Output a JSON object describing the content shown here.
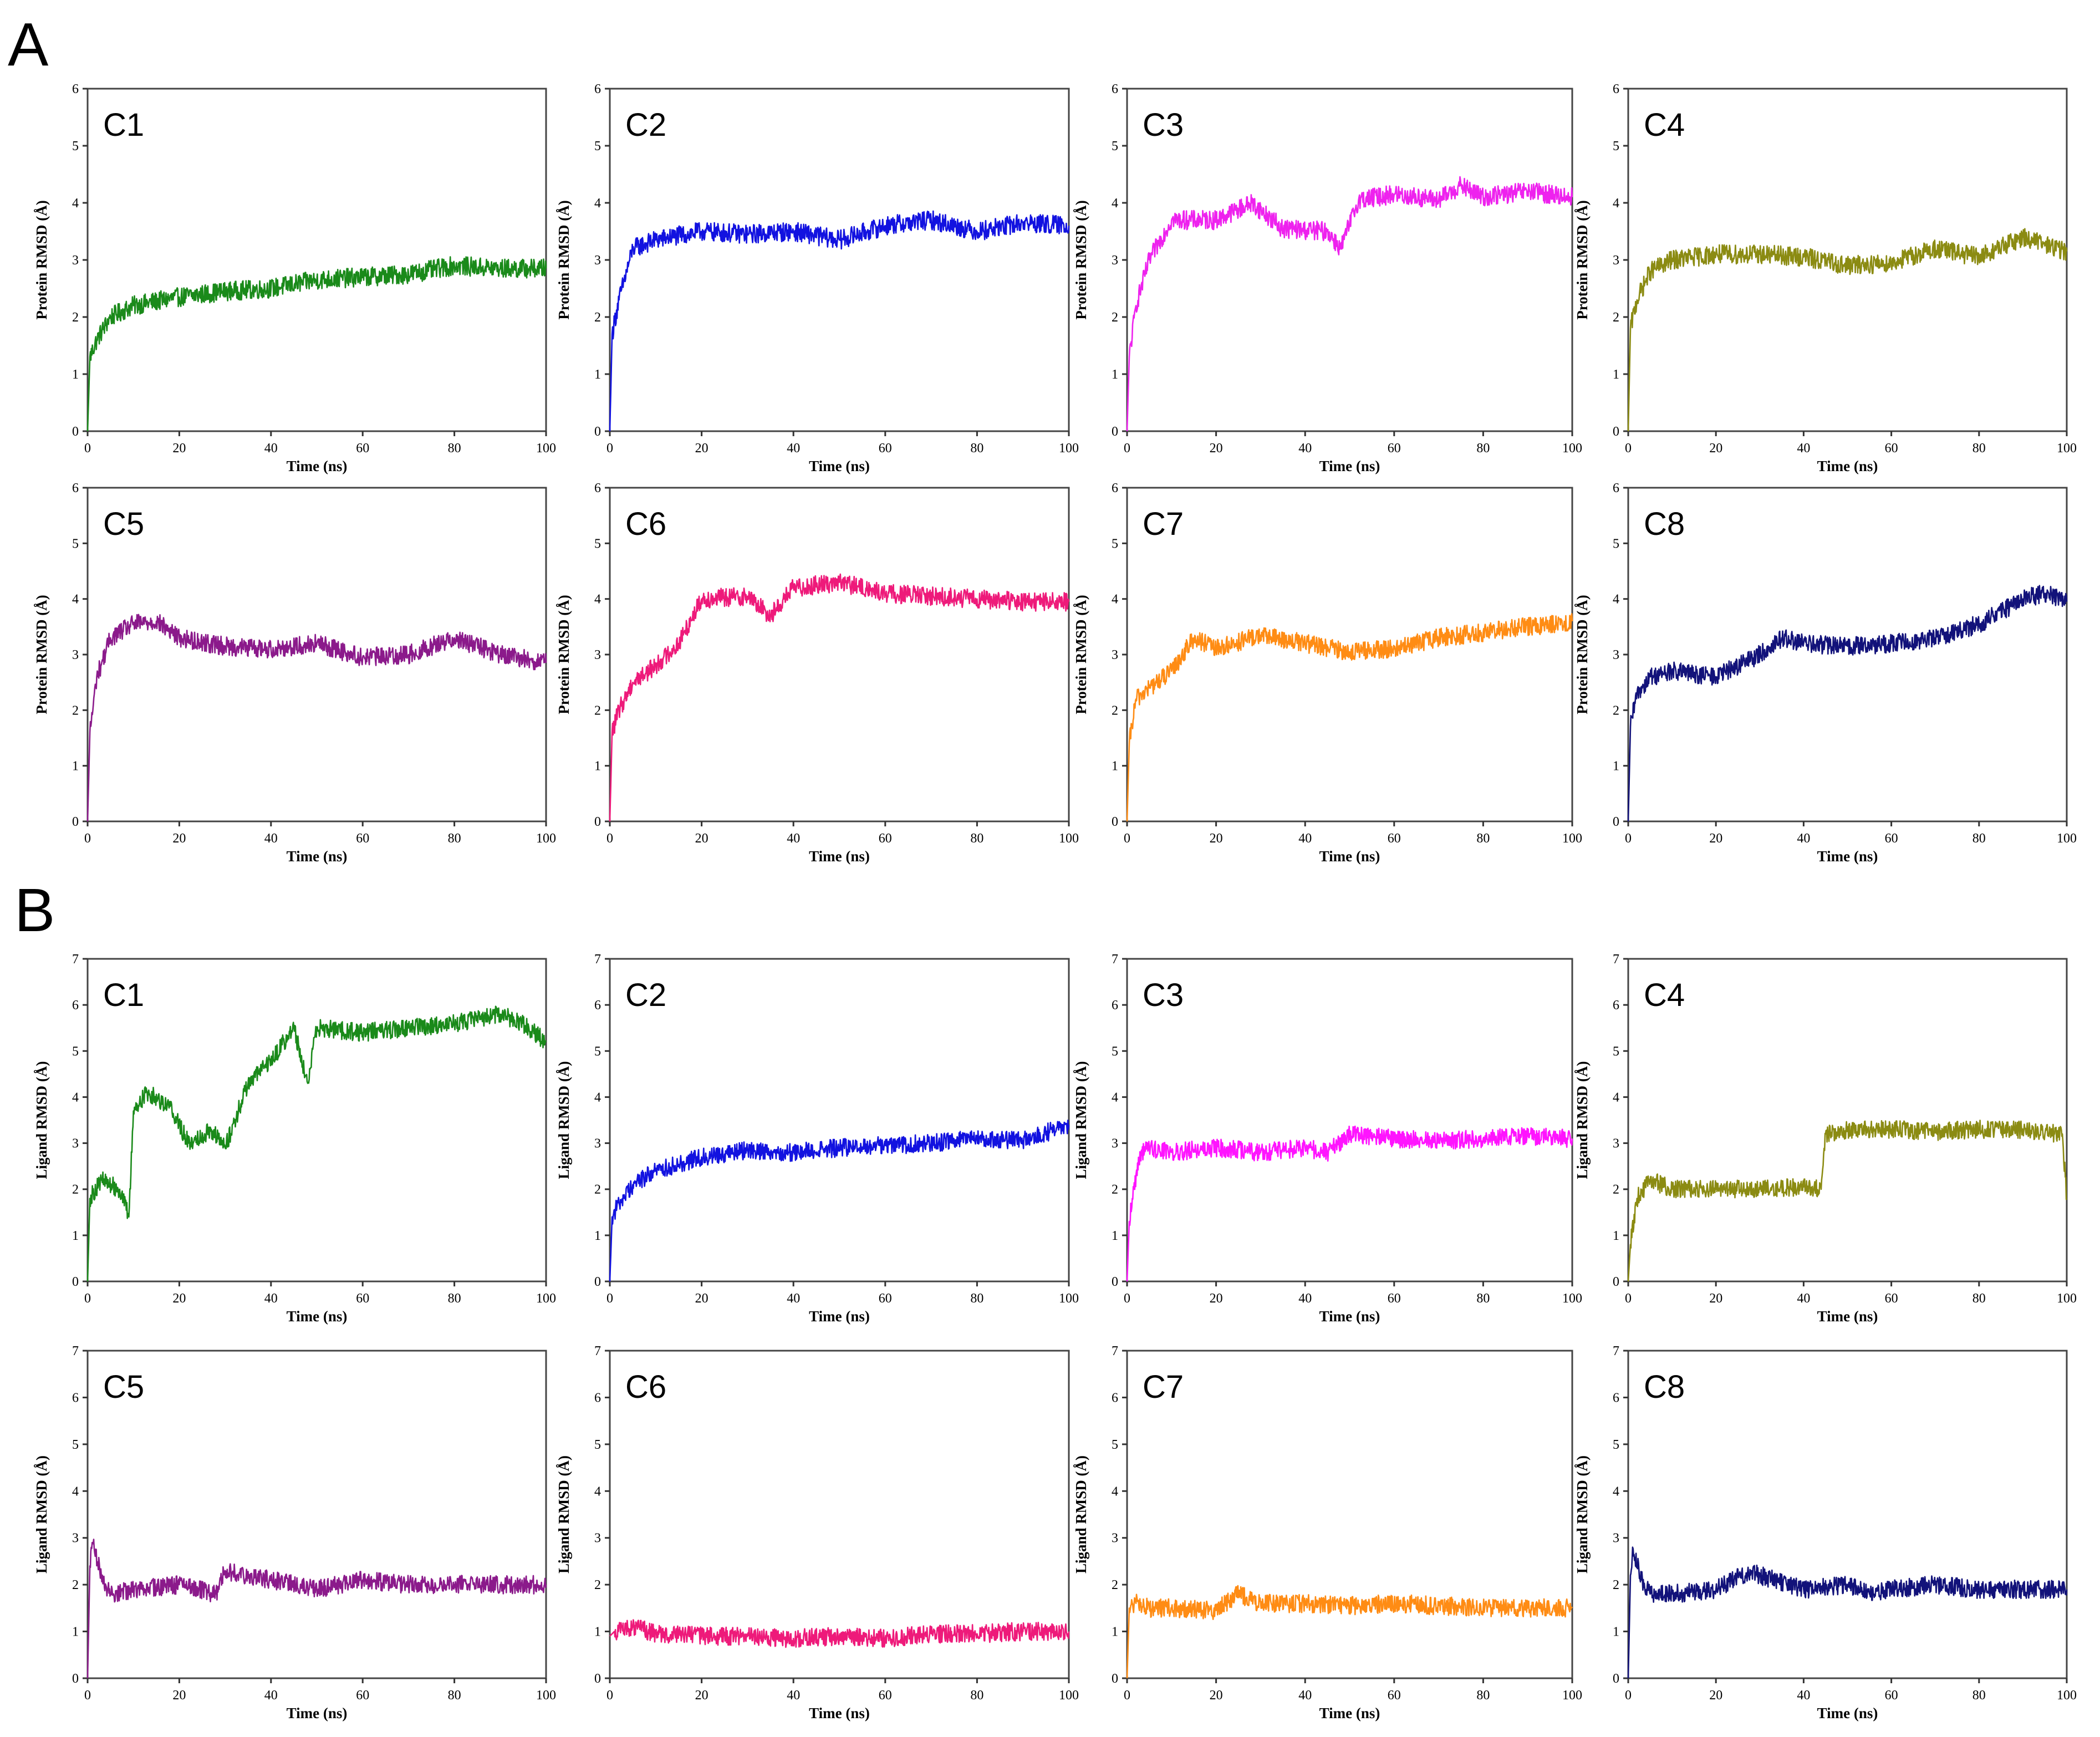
{
  "panels": [
    {
      "letter": "A",
      "ylabel": "Protein RMSD (Å)",
      "xlabel": "Time (ns)"
    },
    {
      "letter": "B",
      "ylabel": "Ligand RMSD (Å)",
      "xlabel": "Time (ns)"
    }
  ],
  "chart_data": [
    {
      "panel": "A",
      "title": "C1",
      "type": "line",
      "xlabel": "Time (ns)",
      "ylabel": "Protein RMSD (Å)",
      "xlim": [
        0,
        100
      ],
      "ylim": [
        0,
        6
      ],
      "xticks": [
        0,
        20,
        40,
        60,
        80,
        100
      ],
      "yticks": [
        0,
        1,
        2,
        3,
        4,
        5,
        6
      ],
      "color": "#1a8a1a",
      "grid": false,
      "series": [
        {
          "x": [
            0,
            0.5,
            2,
            5,
            10,
            20,
            30,
            40,
            50,
            60,
            70,
            80,
            90,
            100
          ],
          "y": [
            0,
            1.3,
            1.6,
            2.0,
            2.2,
            2.35,
            2.45,
            2.5,
            2.65,
            2.7,
            2.75,
            2.9,
            2.85,
            2.85
          ]
        }
      ]
    },
    {
      "panel": "A",
      "title": "C2",
      "type": "line",
      "xlabel": "Time (ns)",
      "ylabel": "Protein RMSD (Å)",
      "xlim": [
        0,
        100
      ],
      "ylim": [
        0,
        6
      ],
      "xticks": [
        0,
        20,
        40,
        60,
        80,
        100
      ],
      "yticks": [
        0,
        1,
        2,
        3,
        4,
        5,
        6
      ],
      "color": "#1212e0",
      "grid": false,
      "series": [
        {
          "x": [
            0,
            0.5,
            2,
            5,
            10,
            20,
            30,
            40,
            50,
            60,
            70,
            80,
            90,
            100
          ],
          "y": [
            0,
            1.7,
            2.3,
            3.2,
            3.35,
            3.5,
            3.45,
            3.5,
            3.35,
            3.6,
            3.7,
            3.5,
            3.65,
            3.6
          ]
        }
      ]
    },
    {
      "panel": "A",
      "title": "C3",
      "type": "line",
      "xlabel": "Time (ns)",
      "ylabel": "Protein RMSD (Å)",
      "xlim": [
        0,
        100
      ],
      "ylim": [
        0,
        6
      ],
      "xticks": [
        0,
        20,
        40,
        60,
        80,
        100
      ],
      "yticks": [
        0,
        1,
        2,
        3,
        4,
        5,
        6
      ],
      "color": "#ee22ee",
      "grid": false,
      "series": [
        {
          "x": [
            0,
            0.5,
            2,
            5,
            10,
            20,
            28,
            35,
            45,
            48,
            52,
            60,
            70,
            75,
            80,
            90,
            100
          ],
          "y": [
            0,
            1.3,
            2.2,
            3.0,
            3.7,
            3.7,
            4.0,
            3.55,
            3.5,
            3.2,
            4.05,
            4.15,
            4.05,
            4.3,
            4.1,
            4.2,
            4.1
          ]
        }
      ]
    },
    {
      "panel": "A",
      "title": "C4",
      "type": "line",
      "xlabel": "Time (ns)",
      "ylabel": "Protein RMSD (Å)",
      "xlim": [
        0,
        100
      ],
      "ylim": [
        0,
        6
      ],
      "xticks": [
        0,
        20,
        40,
        60,
        80,
        100
      ],
      "yticks": [
        0,
        1,
        2,
        3,
        4,
        5,
        6
      ],
      "color": "#8b8b12",
      "grid": false,
      "series": [
        {
          "x": [
            0,
            0.5,
            2,
            5,
            10,
            20,
            30,
            40,
            50,
            60,
            70,
            80,
            90,
            100
          ],
          "y": [
            0,
            1.8,
            2.3,
            2.8,
            3.0,
            3.1,
            3.1,
            3.05,
            2.9,
            2.95,
            3.2,
            3.05,
            3.4,
            3.15
          ]
        }
      ]
    },
    {
      "panel": "A",
      "title": "C5",
      "type": "line",
      "xlabel": "Time (ns)",
      "ylabel": "Protein RMSD (Å)",
      "xlim": [
        0,
        100
      ],
      "ylim": [
        0,
        6
      ],
      "xticks": [
        0,
        20,
        40,
        60,
        80,
        100
      ],
      "yticks": [
        0,
        1,
        2,
        3,
        4,
        5,
        6
      ],
      "color": "#8b1a8b",
      "grid": false,
      "series": [
        {
          "x": [
            0,
            0.5,
            2,
            5,
            10,
            15,
            20,
            30,
            40,
            50,
            60,
            70,
            80,
            90,
            100
          ],
          "y": [
            0,
            1.6,
            2.6,
            3.3,
            3.55,
            3.6,
            3.3,
            3.15,
            3.1,
            3.2,
            2.95,
            3.0,
            3.3,
            3.0,
            2.85
          ]
        }
      ]
    },
    {
      "panel": "A",
      "title": "C6",
      "type": "line",
      "xlabel": "Time (ns)",
      "ylabel": "Protein RMSD (Å)",
      "xlim": [
        0,
        100
      ],
      "ylim": [
        0,
        6
      ],
      "xticks": [
        0,
        20,
        40,
        60,
        80,
        100
      ],
      "yticks": [
        0,
        1,
        2,
        3,
        4,
        5,
        6
      ],
      "color": "#ee1a7a",
      "grid": false,
      "series": [
        {
          "x": [
            0,
            0.5,
            2,
            5,
            10,
            15,
            20,
            30,
            35,
            40,
            50,
            60,
            70,
            80,
            90,
            100
          ],
          "y": [
            0,
            1.6,
            2.0,
            2.5,
            2.8,
            3.2,
            4.0,
            4.05,
            3.7,
            4.2,
            4.3,
            4.1,
            4.05,
            4.0,
            3.95,
            3.95
          ]
        }
      ]
    },
    {
      "panel": "A",
      "title": "C7",
      "type": "line",
      "xlabel": "Time (ns)",
      "ylabel": "Protein RMSD (Å)",
      "xlim": [
        0,
        100
      ],
      "ylim": [
        0,
        6
      ],
      "xticks": [
        0,
        20,
        40,
        60,
        80,
        100
      ],
      "yticks": [
        0,
        1,
        2,
        3,
        4,
        5,
        6
      ],
      "color": "#ff8c14",
      "grid": false,
      "series": [
        {
          "x": [
            0,
            0.5,
            2,
            5,
            10,
            15,
            20,
            30,
            40,
            50,
            60,
            70,
            80,
            90,
            100
          ],
          "y": [
            0,
            1.4,
            2.2,
            2.4,
            2.7,
            3.3,
            3.1,
            3.35,
            3.2,
            3.05,
            3.1,
            3.3,
            3.4,
            3.5,
            3.6
          ]
        }
      ]
    },
    {
      "panel": "A",
      "title": "C8",
      "type": "line",
      "xlabel": "Time (ns)",
      "ylabel": "Protein RMSD (Å)",
      "xlim": [
        0,
        100
      ],
      "ylim": [
        0,
        6
      ],
      "xticks": [
        0,
        20,
        40,
        60,
        80,
        100
      ],
      "yticks": [
        0,
        1,
        2,
        3,
        4,
        5,
        6
      ],
      "color": "#12127a",
      "grid": false,
      "series": [
        {
          "x": [
            0,
            0.5,
            2,
            5,
            10,
            20,
            30,
            35,
            40,
            50,
            60,
            70,
            80,
            90,
            95,
            100
          ],
          "y": [
            0,
            1.7,
            2.3,
            2.6,
            2.7,
            2.6,
            3.0,
            3.3,
            3.2,
            3.15,
            3.2,
            3.3,
            3.55,
            4.0,
            4.1,
            3.95
          ]
        }
      ]
    },
    {
      "panel": "B",
      "title": "C1",
      "type": "line",
      "xlabel": "Time (ns)",
      "ylabel": "Ligand RMSD (Å)",
      "xlim": [
        0,
        100
      ],
      "ylim": [
        0,
        7
      ],
      "xticks": [
        0,
        20,
        40,
        60,
        80,
        100
      ],
      "yticks": [
        0,
        1,
        2,
        3,
        4,
        5,
        6,
        7
      ],
      "color": "#1a8a1a",
      "grid": false,
      "series": [
        {
          "x": [
            0,
            0.5,
            3,
            7,
            9,
            10,
            13,
            18,
            22,
            27,
            30,
            35,
            40,
            45,
            48,
            50,
            60,
            70,
            80,
            90,
            95,
            100
          ],
          "y": [
            0,
            1.8,
            2.2,
            2.0,
            1.4,
            3.7,
            4.1,
            3.8,
            3.0,
            3.3,
            2.9,
            4.3,
            4.8,
            5.5,
            4.3,
            5.5,
            5.4,
            5.5,
            5.6,
            5.8,
            5.6,
            5.2
          ]
        }
      ]
    },
    {
      "panel": "B",
      "title": "C2",
      "type": "line",
      "xlabel": "Time (ns)",
      "ylabel": "Ligand RMSD (Å)",
      "xlim": [
        0,
        100
      ],
      "ylim": [
        0,
        7
      ],
      "xticks": [
        0,
        20,
        40,
        60,
        80,
        100
      ],
      "yticks": [
        0,
        1,
        2,
        3,
        4,
        5,
        6,
        7
      ],
      "color": "#1212e0",
      "grid": false,
      "series": [
        {
          "x": [
            0,
            0.5,
            2,
            5,
            10,
            20,
            30,
            40,
            50,
            60,
            70,
            80,
            90,
            100
          ],
          "y": [
            0,
            1.4,
            1.7,
            2.1,
            2.4,
            2.7,
            2.85,
            2.8,
            2.9,
            2.95,
            3.0,
            3.1,
            3.05,
            3.4
          ]
        }
      ]
    },
    {
      "panel": "B",
      "title": "C3",
      "type": "line",
      "xlabel": "Time (ns)",
      "ylabel": "Ligand RMSD (Å)",
      "xlim": [
        0,
        100
      ],
      "ylim": [
        0,
        7
      ],
      "xticks": [
        0,
        20,
        40,
        60,
        80,
        100
      ],
      "yticks": [
        0,
        1,
        2,
        3,
        4,
        5,
        6,
        7
      ],
      "color": "#ff14ff",
      "grid": false,
      "series": [
        {
          "x": [
            0,
            0.5,
            1.5,
            3,
            5,
            10,
            20,
            30,
            40,
            45,
            50,
            60,
            70,
            80,
            90,
            100
          ],
          "y": [
            0,
            1.3,
            2.0,
            2.8,
            2.9,
            2.8,
            2.9,
            2.8,
            2.9,
            2.8,
            3.2,
            3.1,
            3.05,
            3.1,
            3.15,
            3.1
          ]
        }
      ]
    },
    {
      "panel": "B",
      "title": "C4",
      "type": "line",
      "xlabel": "Time (ns)",
      "ylabel": "Ligand RMSD (Å)",
      "xlim": [
        0,
        100
      ],
      "ylim": [
        0,
        7
      ],
      "xticks": [
        0,
        20,
        40,
        60,
        80,
        100
      ],
      "yticks": [
        0,
        1,
        2,
        3,
        4,
        5,
        6,
        7
      ],
      "color": "#8b8b12",
      "grid": false,
      "series": [
        {
          "x": [
            0,
            0.5,
            2,
            5,
            10,
            20,
            30,
            40,
            44,
            45,
            50,
            60,
            70,
            80,
            90,
            99,
            100
          ],
          "y": [
            0,
            0.8,
            1.8,
            2.2,
            2.0,
            2.0,
            2.0,
            2.05,
            2.0,
            3.2,
            3.3,
            3.3,
            3.25,
            3.3,
            3.3,
            3.2,
            1.8
          ]
        }
      ]
    },
    {
      "panel": "B",
      "title": "C5",
      "type": "line",
      "xlabel": "Time (ns)",
      "ylabel": "Ligand RMSD (Å)",
      "xlim": [
        0,
        100
      ],
      "ylim": [
        0,
        7
      ],
      "xticks": [
        0,
        20,
        40,
        60,
        80,
        100
      ],
      "yticks": [
        0,
        1,
        2,
        3,
        4,
        5,
        6,
        7
      ],
      "color": "#8b1a8b",
      "grid": false,
      "series": [
        {
          "x": [
            0,
            0.5,
            1,
            3,
            5,
            10,
            20,
            28,
            30,
            40,
            50,
            60,
            70,
            80,
            90,
            100
          ],
          "y": [
            0,
            2.4,
            2.9,
            2.2,
            1.8,
            1.9,
            2.0,
            1.8,
            2.3,
            2.1,
            1.9,
            2.1,
            2.0,
            2.0,
            2.0,
            2.0
          ]
        }
      ]
    },
    {
      "panel": "B",
      "title": "C6",
      "type": "line",
      "xlabel": "Time (ns)",
      "ylabel": "Ligand RMSD (Å)",
      "xlim": [
        0,
        100
      ],
      "ylim": [
        0,
        7
      ],
      "xticks": [
        0,
        20,
        40,
        60,
        80,
        100
      ],
      "yticks": [
        0,
        1,
        2,
        3,
        4,
        5,
        6,
        7
      ],
      "color": "#ee1a7a",
      "grid": false,
      "series": [
        {
          "x": [
            0,
            1,
            5,
            10,
            20,
            30,
            40,
            50,
            60,
            70,
            80,
            90,
            100
          ],
          "y": [
            0.9,
            1.0,
            1.1,
            0.95,
            0.9,
            0.9,
            0.85,
            0.9,
            0.85,
            0.95,
            0.95,
            1.0,
            1.0
          ]
        }
      ]
    },
    {
      "panel": "B",
      "title": "C7",
      "type": "line",
      "xlabel": "Time (ns)",
      "ylabel": "Ligand RMSD (Å)",
      "xlim": [
        0,
        100
      ],
      "ylim": [
        0,
        7
      ],
      "xticks": [
        0,
        20,
        40,
        60,
        80,
        100
      ],
      "yticks": [
        0,
        1,
        2,
        3,
        4,
        5,
        6,
        7
      ],
      "color": "#ff8c14",
      "grid": false,
      "series": [
        {
          "x": [
            0,
            0.5,
            2,
            5,
            10,
            20,
            25,
            30,
            40,
            50,
            60,
            70,
            80,
            90,
            100
          ],
          "y": [
            0,
            1.5,
            1.6,
            1.5,
            1.5,
            1.45,
            1.8,
            1.6,
            1.6,
            1.55,
            1.6,
            1.55,
            1.5,
            1.5,
            1.5
          ]
        }
      ]
    },
    {
      "panel": "B",
      "title": "C8",
      "type": "line",
      "xlabel": "Time (ns)",
      "ylabel": "Ligand RMSD (Å)",
      "xlim": [
        0,
        100
      ],
      "ylim": [
        0,
        7
      ],
      "xticks": [
        0,
        20,
        40,
        60,
        80,
        100
      ],
      "yticks": [
        0,
        1,
        2,
        3,
        4,
        5,
        6,
        7
      ],
      "color": "#12127a",
      "grid": false,
      "series": [
        {
          "x": [
            0,
            0.5,
            1,
            3,
            5,
            10,
            20,
            28,
            30,
            40,
            50,
            55,
            60,
            70,
            80,
            90,
            100
          ],
          "y": [
            0,
            2.2,
            2.8,
            2.1,
            1.8,
            1.8,
            1.9,
            2.3,
            2.2,
            1.9,
            2.0,
            1.8,
            1.9,
            2.0,
            1.9,
            1.9,
            1.9
          ]
        }
      ]
    }
  ]
}
